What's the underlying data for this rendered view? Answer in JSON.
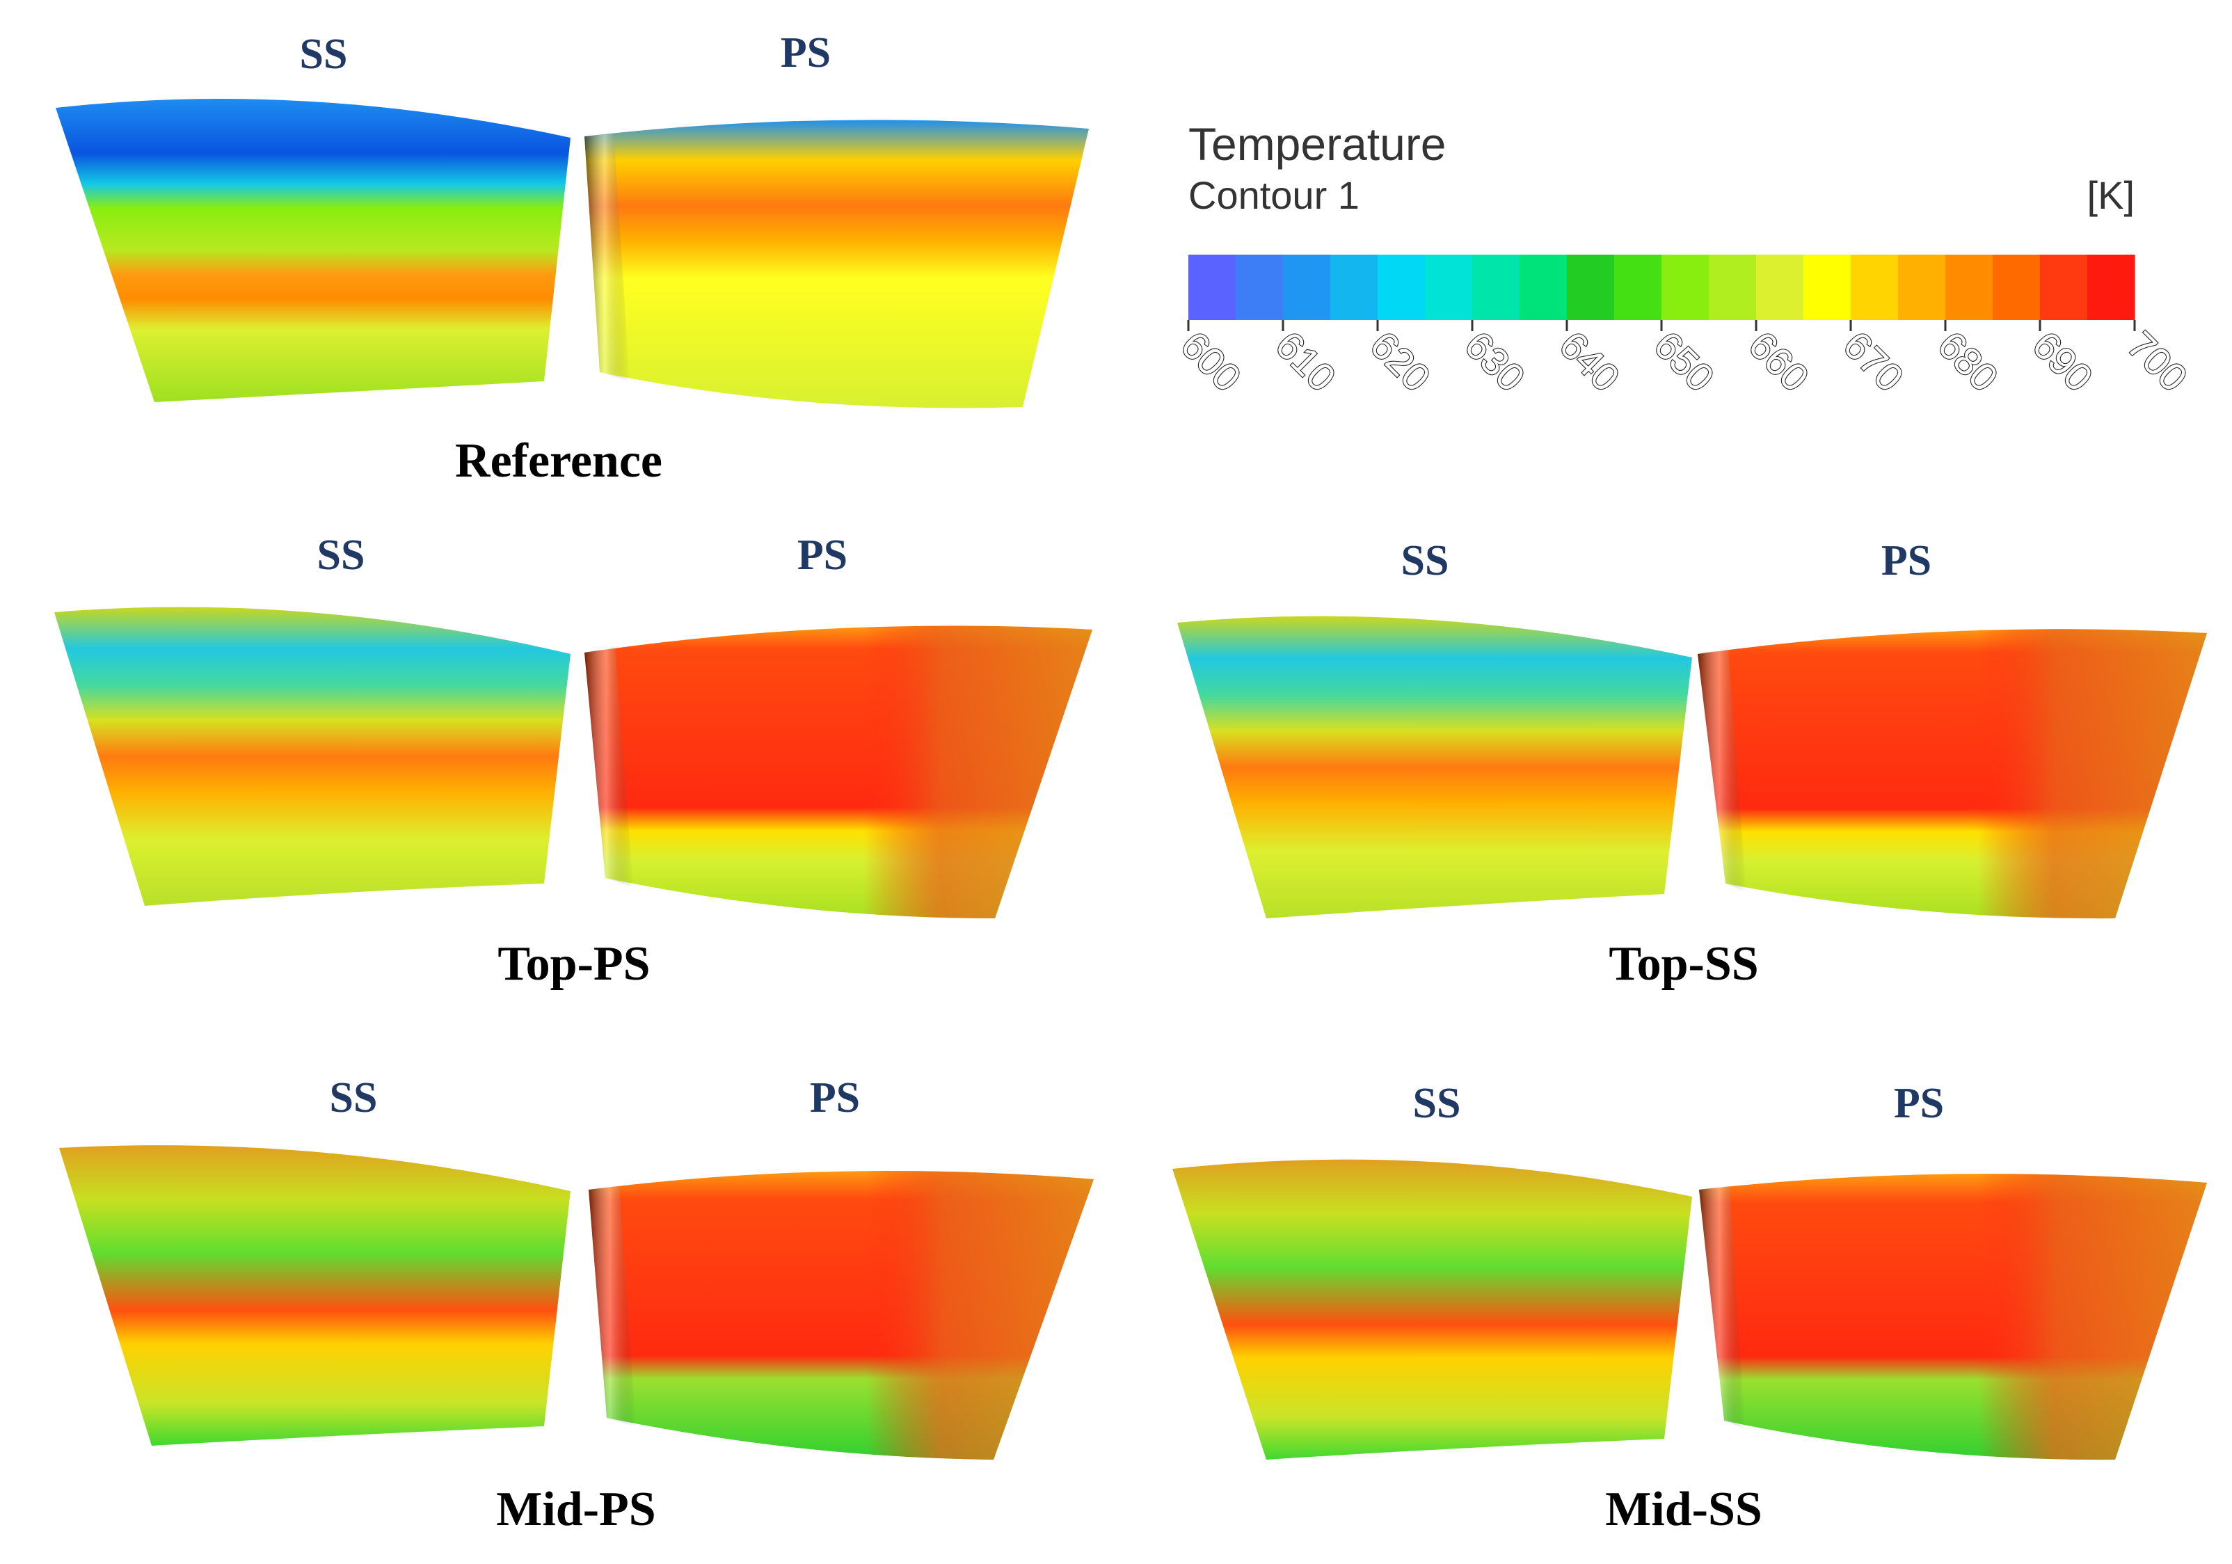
{
  "colorbar": {
    "title": "Temperature",
    "subtitle": "Contour 1",
    "unit": "[K]",
    "min": 600,
    "max": 700,
    "ticks": [
      "600",
      "610",
      "620",
      "630",
      "640",
      "650",
      "660",
      "670",
      "680",
      "690",
      "700"
    ],
    "colors": [
      "#5a63ff",
      "#3d7df5",
      "#1f97f2",
      "#14b6f0",
      "#00d8f6",
      "#00e3d6",
      "#00e6aa",
      "#00e27a",
      "#22cc22",
      "#44e014",
      "#88ee10",
      "#b0ee20",
      "#ddf030",
      "#ffff00",
      "#ffd400",
      "#ffb000",
      "#ff8c00",
      "#ff6a00",
      "#ff3a10",
      "#ff1a10"
    ]
  },
  "panels": [
    {
      "case": "Reference",
      "ss_label": "SS",
      "ps_label": "PS"
    },
    {
      "case": "Top-PS",
      "ss_label": "SS",
      "ps_label": "PS"
    },
    {
      "case": "Top-SS",
      "ss_label": "SS",
      "ps_label": "PS"
    },
    {
      "case": "Mid-PS",
      "ss_label": "SS",
      "ps_label": "PS"
    },
    {
      "case": "Mid-SS",
      "ss_label": "SS",
      "ps_label": "PS"
    }
  ]
}
